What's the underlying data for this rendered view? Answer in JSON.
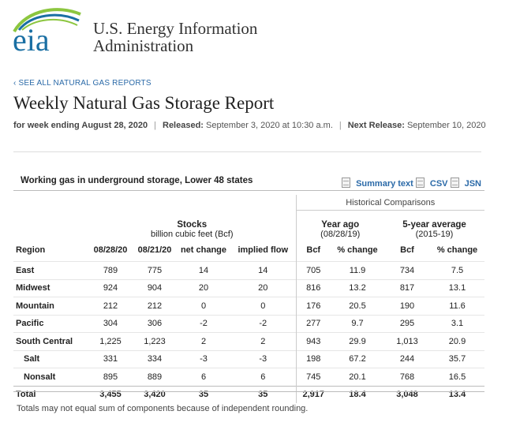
{
  "header": {
    "logo_text": "eia",
    "org_line1": "U.S. Energy Information",
    "org_line2": "Administration"
  },
  "nav": {
    "back_link": "‹ SEE ALL NATURAL GAS REPORTS"
  },
  "page": {
    "title": "Weekly Natural Gas Storage Report",
    "week_ending_label": "for week ending August 28, 2020",
    "released_label": "Released:",
    "released_value": "September 3, 2020 at 10:30 a.m.",
    "next_release_label": "Next Release:",
    "next_release_value": "September 10, 2020"
  },
  "table": {
    "title": "Working gas in underground storage, Lower 48 states",
    "links": {
      "summary": "Summary text",
      "csv": "CSV",
      "json": "JSN"
    },
    "historical_header": "Historical Comparisons",
    "stocks_header": "Stocks",
    "stocks_sub": "billion cubic feet (Bcf)",
    "year_ago_header": "Year ago",
    "year_ago_sub": "(08/28/19)",
    "five_year_header": "5-year average",
    "five_year_sub": "(2015-19)",
    "columns": [
      "Region",
      "08/28/20",
      "08/21/20",
      "net change",
      "implied flow",
      "Bcf",
      "% change",
      "Bcf",
      "% change"
    ],
    "rows": [
      [
        "East",
        "789",
        "775",
        "14",
        "14",
        "705",
        "11.9",
        "734",
        "7.5"
      ],
      [
        "Midwest",
        "924",
        "904",
        "20",
        "20",
        "816",
        "13.2",
        "817",
        "13.1"
      ],
      [
        "Mountain",
        "212",
        "212",
        "0",
        "0",
        "176",
        "20.5",
        "190",
        "11.6"
      ],
      [
        "Pacific",
        "304",
        "306",
        "-2",
        "-2",
        "277",
        "9.7",
        "295",
        "3.1"
      ],
      [
        "South Central",
        "1,225",
        "1,223",
        "2",
        "2",
        "943",
        "29.9",
        "1,013",
        "20.9"
      ],
      [
        "Salt",
        "331",
        "334",
        "-3",
        "-3",
        "198",
        "67.2",
        "244",
        "35.7"
      ],
      [
        "Nonsalt",
        "895",
        "889",
        "6",
        "6",
        "745",
        "20.1",
        "768",
        "16.5"
      ],
      [
        "Total",
        "3,455",
        "3,420",
        "35",
        "35",
        "2,917",
        "18.4",
        "3,048",
        "13.4"
      ]
    ],
    "footnote": "Totals may not equal sum of components because of independent rounding."
  },
  "colors": {
    "link": "#2b6aa8",
    "logo_blue": "#1a6fa3",
    "logo_green": "#8cc63f"
  }
}
